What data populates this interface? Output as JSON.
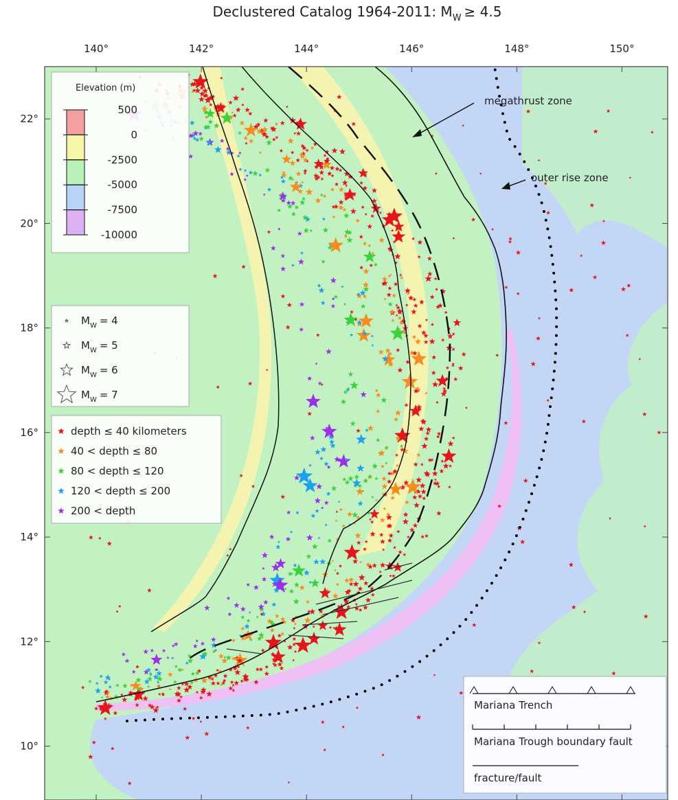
{
  "title": {
    "main": "Declustered Catalog 1964-2011: M",
    "sub": "W",
    "tail": "≥ 4.5"
  },
  "axes": {
    "xlim": [
      139.02,
      150.87
    ],
    "ylim": [
      8.97,
      23.0
    ],
    "xticks": [
      {
        "value": 140,
        "label": "140°"
      },
      {
        "value": 142,
        "label": "142°"
      },
      {
        "value": 144,
        "label": "144°"
      },
      {
        "value": 146,
        "label": "146°"
      },
      {
        "value": 148,
        "label": "148°"
      },
      {
        "value": 150,
        "label": "150°"
      }
    ],
    "yticks": [
      {
        "value": 10,
        "label": "10°"
      },
      {
        "value": 12,
        "label": "12°"
      },
      {
        "value": 14,
        "label": "14°"
      },
      {
        "value": 16,
        "label": "16°"
      },
      {
        "value": 18,
        "label": "18°"
      },
      {
        "value": 20,
        "label": "20°"
      },
      {
        "value": 22,
        "label": "22°"
      }
    ]
  },
  "elevation_legend": {
    "title": "Elevation (m)",
    "levels": [
      {
        "value": 500,
        "color": "#f4a0a0"
      },
      {
        "value": 0,
        "color": "#f6f6a8"
      },
      {
        "value": -2500,
        "color": "#b8f2b8"
      },
      {
        "value": -5000,
        "color": "#b8d4f6"
      },
      {
        "value": -7500,
        "color": "#dcb0f2"
      },
      {
        "value": -10000
      }
    ]
  },
  "magnitude_legend": [
    {
      "label": "M",
      "sub": "W",
      "tail": "= 4",
      "size": 2
    },
    {
      "label": "M",
      "sub": "W",
      "tail": "= 5",
      "size": 5
    },
    {
      "label": "M",
      "sub": "W",
      "tail": "= 6",
      "size": 9
    },
    {
      "label": "M",
      "sub": "W",
      "tail": "= 7",
      "size": 14
    }
  ],
  "depth_legend": [
    {
      "label": "depth ≤ 40 kilometers",
      "color": "#e8141c"
    },
    {
      "label": "40 < depth ≤ 80",
      "color": "#f88c1c"
    },
    {
      "label": "80 < depth ≤ 120",
      "color": "#3cd23c"
    },
    {
      "label": "120 < depth ≤ 200",
      "color": "#1ca0f0"
    },
    {
      "label": "200 < depth",
      "color": "#9c30e8"
    }
  ],
  "annotations": {
    "megathrust": "megathrust zone",
    "outer_rise": "outer rise zone"
  },
  "line_legend": {
    "trench": "Mariana Trench",
    "trough": "Mariana Trough boundary fault",
    "fracture": "fracture/fault"
  }
}
